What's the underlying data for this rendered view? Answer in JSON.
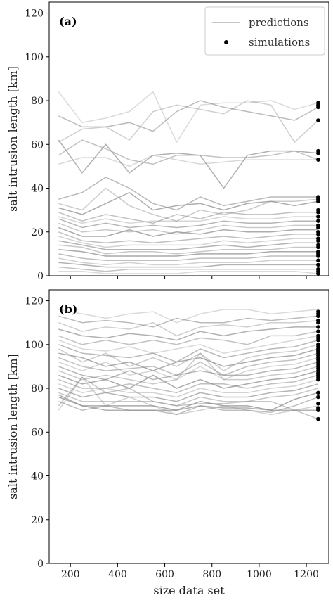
{
  "chart_data": {
    "type": "line",
    "xlabel": "size data set",
    "x_ticks": [
      200,
      400,
      600,
      800,
      1000,
      1200
    ],
    "xlim": [
      110,
      1295
    ],
    "legend": {
      "placement": "top-right",
      "predictions_label": "predictions",
      "simulations_label": "simulations"
    },
    "colors": {
      "prediction_line": "#8c8c8c",
      "simulation_dot": "#000000"
    },
    "panels": [
      {
        "label": "(a)",
        "ylabel": "salt intrusion length [km]",
        "ylim": [
          0,
          125
        ],
        "y_ticks": [
          0,
          20,
          40,
          60,
          80,
          100,
          120
        ],
        "x": [
          150,
          250,
          350,
          450,
          550,
          650,
          750,
          850,
          950,
          1050,
          1150,
          1250
        ],
        "series": [
          {
            "values": [
              84,
              70,
              72,
              75,
              84,
              61,
              78,
              79,
              79,
              80,
              76,
              79
            ]
          },
          {
            "values": [
              73,
              68,
              68,
              70,
              66,
              75,
              80,
              77,
              75,
              73,
              71,
              77
            ]
          },
          {
            "values": [
              61,
              67,
              68,
              62,
              75,
              78,
              76,
              74,
              80,
              78,
              61,
              71
            ]
          },
          {
            "values": [
              62,
              47,
              60,
              47,
              55,
              56,
              55,
              40,
              55,
              57,
              57,
              56
            ]
          },
          {
            "values": [
              55,
              62,
              58,
              53,
              51,
              55,
              55,
              54,
              54,
              55,
              57,
              53
            ]
          },
          {
            "values": [
              51,
              54,
              54,
              50,
              55,
              53,
              51,
              52,
              53,
              53,
              53,
              53
            ]
          },
          {
            "values": [
              35,
              38,
              45,
              40,
              33,
              30,
              36,
              32,
              34,
              36,
              36,
              36
            ]
          },
          {
            "values": [
              33,
              30,
              40,
              32,
              28,
              25,
              30,
              28,
              30,
              34,
              34,
              35
            ]
          },
          {
            "values": [
              31,
              28,
              33,
              38,
              30,
              32,
              33,
              30,
              33,
              34,
              32,
              34
            ]
          },
          {
            "values": [
              29,
              25,
              28,
              26,
              24,
              28,
              26,
              29,
              28,
              28,
              29,
              29
            ]
          },
          {
            "values": [
              27,
              24,
              26,
              24,
              25,
              25,
              25,
              27,
              26,
              26,
              27,
              27
            ]
          },
          {
            "values": [
              26,
              22,
              24,
              22,
              23,
              22,
              23,
              25,
              24,
              24,
              25,
              25
            ]
          },
          {
            "values": [
              24,
              20,
              21,
              20,
              21,
              19,
              21,
              23,
              22,
              22,
              23,
              23
            ]
          },
          {
            "values": [
              22,
              18,
              18,
              21,
              18,
              20,
              19,
              21,
              20,
              20,
              21,
              21
            ]
          },
          {
            "values": [
              20,
              16,
              15,
              16,
              15,
              16,
              17,
              18,
              17,
              18,
              19,
              19
            ]
          },
          {
            "values": [
              18,
              15,
              13,
              14,
              14,
              14,
              14,
              16,
              15,
              16,
              17,
              17
            ]
          },
          {
            "values": [
              16,
              14,
              12,
              12,
              12,
              12,
              13,
              14,
              13,
              14,
              15,
              15
            ]
          },
          {
            "values": [
              14,
              13,
              10,
              11,
              11,
              10,
              11,
              12,
              12,
              12,
              13,
              13
            ]
          },
          {
            "values": [
              12,
              11,
              9,
              9,
              9,
              9,
              10,
              10,
              10,
              11,
              11,
              11
            ]
          },
          {
            "values": [
              10,
              8,
              7,
              7,
              7,
              7,
              8,
              8,
              8,
              9,
              9,
              9
            ]
          },
          {
            "values": [
              8,
              6,
              5,
              6,
              5,
              5,
              6,
              6,
              6,
              7,
              7,
              7
            ]
          },
          {
            "values": [
              6,
              5,
              4,
              4,
              4,
              4,
              4,
              5,
              5,
              5,
              5,
              5
            ]
          },
          {
            "values": [
              4,
              3,
              2,
              3,
              3,
              3,
              3,
              3,
              3,
              3,
              3,
              3
            ]
          },
          {
            "values": [
              2,
              2,
              1,
              1,
              1,
              1,
              2,
              2,
              2,
              2,
              2,
              1
            ]
          }
        ],
        "simulations": {
          "x": 1250,
          "values": [
            79,
            78,
            77,
            71,
            57,
            56,
            53,
            36,
            35,
            34,
            30,
            29,
            27,
            25,
            23,
            22,
            20,
            19,
            17,
            16,
            14,
            13,
            11,
            10,
            9,
            7,
            5,
            3,
            2,
            1
          ]
        }
      },
      {
        "label": "(b)",
        "ylabel": "salt intrusion length [km]",
        "ylim": [
          0,
          125
        ],
        "y_ticks": [
          0,
          20,
          40,
          60,
          80,
          100,
          120
        ],
        "x": [
          150,
          250,
          350,
          450,
          550,
          650,
          750,
          850,
          950,
          1050,
          1150,
          1250
        ],
        "series": [
          {
            "values": [
              116,
              114,
              112,
              114,
              115,
              110,
              114,
              116,
              116,
              114,
              115,
              116
            ]
          },
          {
            "values": [
              113,
              110,
              111,
              110,
              108,
              112,
              110,
              110,
              112,
              111,
              112,
              113
            ]
          },
          {
            "values": [
              110,
              106,
              108,
              107,
              110,
              104,
              108,
              109,
              108,
              110,
              110,
              111
            ]
          },
          {
            "values": [
              107,
              104,
              103,
              105,
              104,
              102,
              106,
              104,
              106,
              107,
              108,
              108
            ]
          },
          {
            "values": [
              104,
              100,
              102,
              100,
              102,
              100,
              103,
              102,
              100,
              104,
              104,
              106
            ]
          },
          {
            "values": [
              102,
              98,
              97,
              99,
              96,
              98,
              100,
              96,
              98,
              100,
              102,
              104
            ]
          },
          {
            "values": [
              100,
              96,
              95,
              94,
              96,
              92,
              98,
              94,
              96,
              98,
              99,
              102
            ]
          },
          {
            "values": [
              98,
              92,
              96,
              90,
              94,
              90,
              96,
              88,
              94,
              96,
              97,
              100
            ]
          },
          {
            "values": [
              96,
              94,
              90,
              92,
              88,
              92,
              94,
              90,
              92,
              94,
              95,
              98
            ]
          },
          {
            "values": [
              94,
              90,
              88,
              89,
              90,
              86,
              92,
              86,
              90,
              92,
              93,
              96
            ]
          },
          {
            "values": [
              92,
              88,
              92,
              86,
              88,
              84,
              90,
              84,
              88,
              90,
              91,
              94
            ]
          },
          {
            "values": [
              90,
              86,
              84,
              88,
              84,
              86,
              88,
              86,
              86,
              88,
              89,
              92
            ]
          },
          {
            "values": [
              88,
              84,
              86,
              84,
              82,
              84,
              96,
              84,
              84,
              86,
              87,
              90
            ]
          },
          {
            "values": [
              86,
              82,
              84,
              80,
              86,
              80,
              84,
              80,
              82,
              84,
              85,
              88
            ]
          },
          {
            "values": [
              84,
              80,
              80,
              82,
              80,
              78,
              82,
              82,
              80,
              82,
              83,
              86
            ]
          },
          {
            "values": [
              82,
              78,
              80,
              78,
              78,
              76,
              80,
              78,
              78,
              80,
              81,
              84
            ]
          },
          {
            "values": [
              80,
              76,
              78,
              76,
              76,
              74,
              78,
              76,
              76,
              78,
              79,
              82
            ]
          },
          {
            "values": [
              78,
              74,
              74,
              74,
              74,
              72,
              76,
              74,
              74,
              76,
              77,
              80
            ]
          },
          {
            "values": [
              76,
              72,
              72,
              72,
              72,
              70,
              74,
              72,
              72,
              70,
              75,
              78
            ]
          },
          {
            "values": [
              74,
              70,
              72,
              70,
              70,
              68,
              72,
              70,
              70,
              69,
              72,
              76
            ]
          },
          {
            "values": [
              70,
              85,
              72,
              76,
              72,
              68,
              70,
              72,
              70,
              68,
              70,
              72
            ]
          },
          {
            "values": [
              77,
              72,
              70,
              70,
              70,
              70,
              72,
              71,
              71,
              70,
              70,
              70
            ]
          },
          {
            "values": [
              72,
              85,
              78,
              80,
              74,
              72,
              73,
              73,
              74,
              74,
              70,
              66
            ]
          }
        ],
        "simulations": {
          "x": 1250,
          "values": [
            115,
            114,
            113,
            111,
            110,
            108,
            106,
            104,
            103,
            102,
            100,
            99,
            98,
            97,
            96,
            95,
            94,
            93,
            92,
            91,
            90,
            89,
            88,
            87,
            86,
            85,
            84,
            78,
            76,
            73,
            71,
            70,
            66
          ]
        }
      }
    ]
  }
}
